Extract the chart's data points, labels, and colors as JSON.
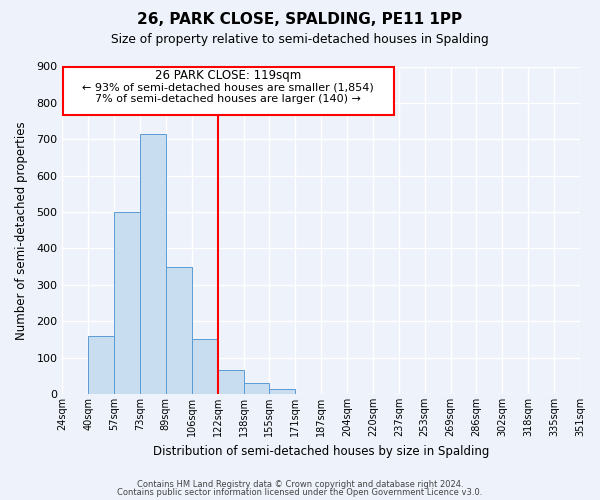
{
  "title": "26, PARK CLOSE, SPALDING, PE11 1PP",
  "subtitle": "Size of property relative to semi-detached houses in Spalding",
  "xlabel": "Distribution of semi-detached houses by size in Spalding",
  "ylabel": "Number of semi-detached properties",
  "bin_labels": [
    "24sqm",
    "40sqm",
    "57sqm",
    "73sqm",
    "89sqm",
    "106sqm",
    "122sqm",
    "138sqm",
    "155sqm",
    "171sqm",
    "187sqm",
    "204sqm",
    "220sqm",
    "237sqm",
    "253sqm",
    "269sqm",
    "286sqm",
    "302sqm",
    "318sqm",
    "335sqm",
    "351sqm"
  ],
  "bar_heights": [
    0,
    160,
    500,
    715,
    350,
    150,
    65,
    30,
    15,
    0,
    0,
    0,
    0,
    0,
    0,
    0,
    0,
    0,
    0,
    0
  ],
  "property_bin_index": 6,
  "property_label": "26 PARK CLOSE: 119sqm",
  "pct_smaller": 93,
  "count_smaller": 1854,
  "pct_larger": 7,
  "count_larger": 140,
  "bar_color": "#c9ddf0",
  "bar_edge_color": "#5b9bd5",
  "vline_color": "red",
  "box_edge_color": "red",
  "background_color": "#eef3fb",
  "grid_color": "white",
  "ylim": [
    0,
    900
  ],
  "yticks": [
    0,
    100,
    200,
    300,
    400,
    500,
    600,
    700,
    800,
    900
  ],
  "footer_line1": "Contains HM Land Registry data © Crown copyright and database right 2024.",
  "footer_line2": "Contains public sector information licensed under the Open Government Licence v3.0."
}
